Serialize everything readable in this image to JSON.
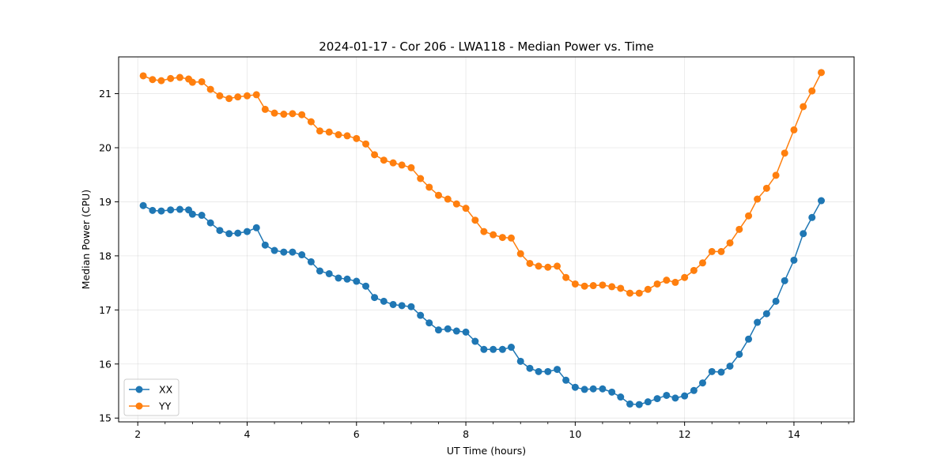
{
  "chart_data": {
    "type": "line",
    "title": "2024-01-17 - Cor 206 - LWA118 - Median Power vs. Time",
    "xlabel": "UT Time (hours)",
    "ylabel": "Median Power (CPU)",
    "xlim": [
      1.65,
      15.1
    ],
    "ylim": [
      14.93,
      21.68
    ],
    "xticks": [
      2,
      4,
      6,
      8,
      10,
      12,
      14
    ],
    "xtick_labels": [
      "2",
      "4",
      "6",
      "8",
      "10",
      "12",
      "14"
    ],
    "yticks": [
      15,
      16,
      17,
      18,
      19,
      20,
      21
    ],
    "ytick_labels": [
      "15",
      "16",
      "17",
      "18",
      "19",
      "20",
      "21"
    ],
    "grid": true,
    "legend_position": "lower-left",
    "x": [
      2.1,
      2.27,
      2.43,
      2.6,
      2.77,
      2.93,
      3.0,
      3.17,
      3.33,
      3.5,
      3.67,
      3.83,
      4.0,
      4.17,
      4.33,
      4.5,
      4.67,
      4.83,
      5.0,
      5.17,
      5.33,
      5.5,
      5.67,
      5.83,
      6.0,
      6.17,
      6.33,
      6.5,
      6.67,
      6.83,
      7.0,
      7.17,
      7.33,
      7.5,
      7.67,
      7.83,
      8.0,
      8.17,
      8.33,
      8.5,
      8.67,
      8.83,
      9.0,
      9.17,
      9.33,
      9.5,
      9.67,
      9.83,
      10.0,
      10.17,
      10.33,
      10.5,
      10.67,
      10.83,
      11.0,
      11.17,
      11.33,
      11.5,
      11.67,
      11.83,
      12.0,
      12.17,
      12.33,
      12.5,
      12.67,
      12.83,
      13.0,
      13.17,
      13.33,
      13.5,
      13.67,
      13.83,
      14.0,
      14.17,
      14.33,
      14.5
    ],
    "series": [
      {
        "name": "XX",
        "color": "#1f77b4",
        "values": [
          18.93,
          18.84,
          18.83,
          18.85,
          18.86,
          18.85,
          18.77,
          18.75,
          18.61,
          18.47,
          18.41,
          18.42,
          18.45,
          18.52,
          18.2,
          18.1,
          18.07,
          18.07,
          18.02,
          17.89,
          17.72,
          17.67,
          17.59,
          17.57,
          17.53,
          17.44,
          17.23,
          17.16,
          17.1,
          17.08,
          17.06,
          16.9,
          16.76,
          16.63,
          16.65,
          16.61,
          16.59,
          16.42,
          16.27,
          16.27,
          16.27,
          16.31,
          16.05,
          15.92,
          15.86,
          15.86,
          15.9,
          15.7,
          15.57,
          15.53,
          15.54,
          15.54,
          15.48,
          15.39,
          15.26,
          15.25,
          15.3,
          15.36,
          15.42,
          15.37,
          15.41,
          15.51,
          15.65,
          15.86,
          15.85,
          15.96,
          16.18,
          16.46,
          16.77,
          16.93,
          17.16,
          17.54,
          17.92,
          18.41,
          18.71,
          19.02
        ]
      },
      {
        "name": "YY",
        "color": "#ff7f0e",
        "values": [
          21.33,
          21.26,
          21.24,
          21.28,
          21.3,
          21.27,
          21.21,
          21.22,
          21.08,
          20.96,
          20.91,
          20.94,
          20.96,
          20.98,
          20.71,
          20.64,
          20.62,
          20.63,
          20.61,
          20.48,
          20.31,
          20.29,
          20.24,
          20.22,
          20.17,
          20.07,
          19.87,
          19.77,
          19.72,
          19.68,
          19.63,
          19.43,
          19.27,
          19.12,
          19.05,
          18.96,
          18.88,
          18.66,
          18.45,
          18.39,
          18.34,
          18.33,
          18.04,
          17.86,
          17.81,
          17.79,
          17.81,
          17.6,
          17.48,
          17.44,
          17.45,
          17.46,
          17.43,
          17.4,
          17.31,
          17.31,
          17.38,
          17.48,
          17.55,
          17.51,
          17.6,
          17.73,
          17.87,
          18.08,
          18.08,
          18.24,
          18.49,
          18.74,
          19.05,
          19.25,
          19.49,
          19.9,
          20.33,
          20.76,
          21.05,
          21.39
        ]
      }
    ]
  }
}
